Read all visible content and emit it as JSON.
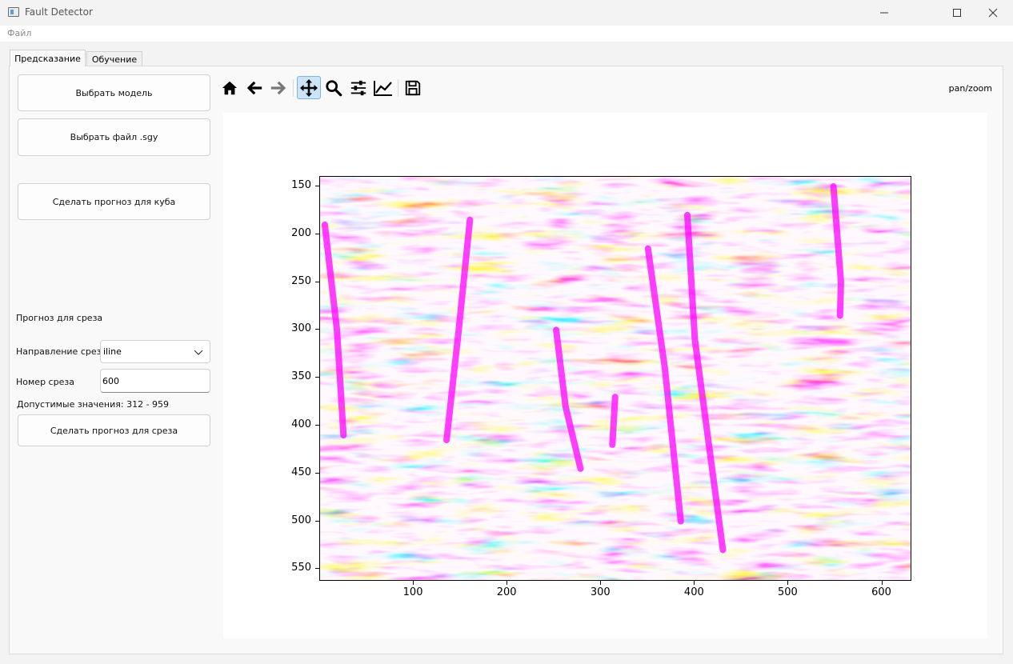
{
  "window": {
    "title": "Fault Detector"
  },
  "menu": {
    "file": "Файл"
  },
  "tabs": {
    "predict": "Предсказание",
    "train": "Обучение"
  },
  "left_panel": {
    "select_model": "Выбрать модель",
    "select_file": "Выбрать файл .sgy",
    "predict_cube": "Сделать прогноз для куба",
    "slice_section_title": "Прогноз для среза",
    "direction_label": "Направление среза",
    "direction_value": "iline",
    "number_label": "Номер среза",
    "number_value": "600",
    "allowed_values": "Допустимые значения: 312 - 959",
    "predict_slice": "Сделать прогноз для среза"
  },
  "toolbar": {
    "icons": [
      "home-icon",
      "back-icon",
      "forward-icon",
      "pan-icon",
      "zoom-icon",
      "configure-subplots-icon",
      "edit-axis-icon",
      "save-icon"
    ],
    "mode": "pan/zoom"
  },
  "chart_data": {
    "type": "heatmap",
    "description_colormap": "seismic",
    "xlim": [
      0,
      632
    ],
    "ylim": [
      563,
      140
    ],
    "xticks": [
      100,
      200,
      300,
      400,
      500,
      600
    ],
    "yticks": [
      150,
      200,
      250,
      300,
      350,
      400,
      450,
      500,
      550
    ],
    "xtick_labels": [
      "100",
      "200",
      "300",
      "400",
      "500",
      "600"
    ],
    "ytick_labels": [
      "150",
      "200",
      "250",
      "300",
      "350",
      "400",
      "450",
      "500",
      "550"
    ],
    "fault_color": "#ff00ff",
    "faults": [
      {
        "points": [
          [
            5,
            190
          ],
          [
            18,
            300
          ],
          [
            25,
            410
          ]
        ]
      },
      {
        "points": [
          [
            160,
            185
          ],
          [
            148,
            300
          ],
          [
            135,
            415
          ]
        ]
      },
      {
        "points": [
          [
            252,
            300
          ],
          [
            262,
            380
          ],
          [
            278,
            445
          ]
        ]
      },
      {
        "points": [
          [
            315,
            370
          ],
          [
            312,
            420
          ]
        ]
      },
      {
        "points": [
          [
            350,
            215
          ],
          [
            368,
            340
          ],
          [
            385,
            500
          ]
        ]
      },
      {
        "points": [
          [
            392,
            180
          ],
          [
            400,
            310
          ],
          [
            430,
            530
          ]
        ]
      },
      {
        "points": [
          [
            548,
            150
          ],
          [
            556,
            250
          ],
          [
            555,
            285
          ]
        ]
      }
    ]
  },
  "colors": {
    "accent": "#0078d4",
    "positive": "#e60000",
    "negative": "#0000c8"
  }
}
